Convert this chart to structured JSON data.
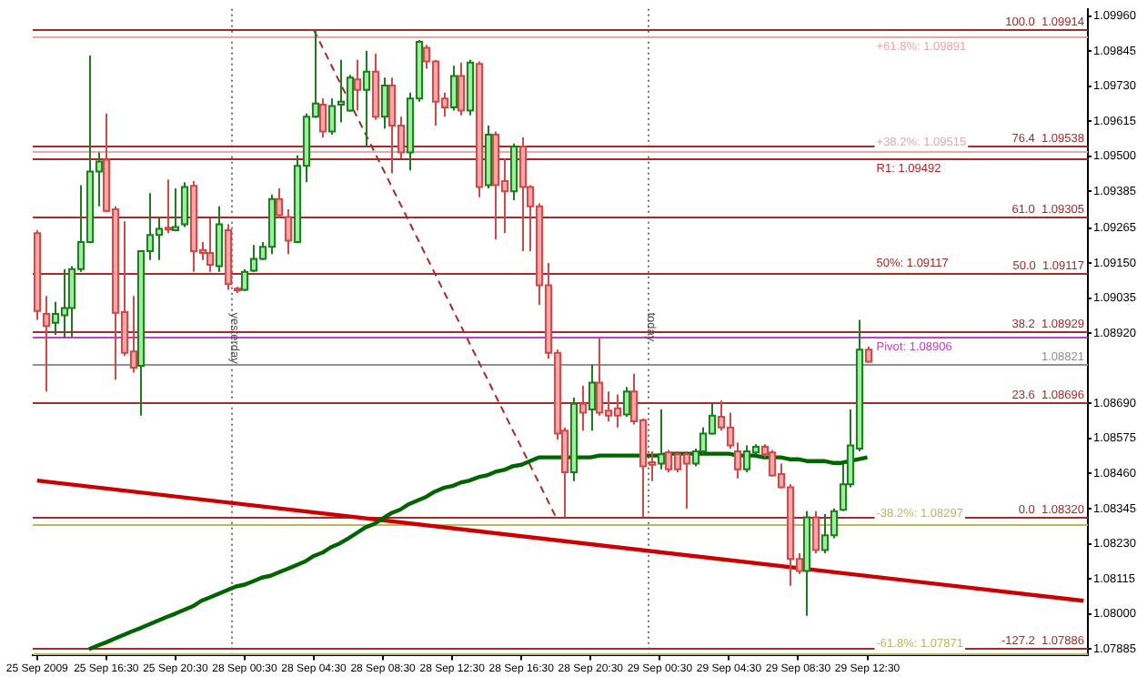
{
  "chart_data": {
    "type": "candlestick",
    "categories": [
      "25 Sep 2009",
      null,
      null,
      null,
      null,
      null,
      null,
      null,
      "25 Sep 16:30",
      null,
      null,
      null,
      null,
      null,
      null,
      null,
      "25 Sep 20:30",
      null,
      null,
      null,
      null,
      null,
      null,
      null,
      "28 Sep 00:30",
      null,
      null,
      null,
      null,
      null,
      null,
      null,
      "28 Sep 04:30",
      null,
      null,
      null,
      null,
      null,
      null,
      null,
      "28 Sep 08:30",
      null,
      null,
      null,
      null,
      null,
      null,
      null,
      "28 Sep 12:30",
      null,
      null,
      null,
      null,
      null,
      null,
      null,
      "28 Sep 16:30",
      null,
      null,
      null,
      null,
      null,
      null,
      null,
      "28 Sep 20:30",
      null,
      null,
      null,
      null,
      null,
      null,
      null,
      "29 Sep 00:30",
      null,
      null,
      null,
      null,
      null,
      null,
      null,
      "29 Sep 04:30",
      null,
      null,
      null,
      null,
      null,
      null,
      null,
      "29 Sep 08:30",
      null,
      null,
      null,
      null,
      null,
      null,
      null,
      "29 Sep 12:30",
      null,
      null,
      null,
      null,
      null,
      null,
      null,
      null,
      null,
      null,
      null,
      null,
      null,
      null,
      null,
      null,
      null,
      null,
      null,
      null,
      null,
      null,
      null,
      null,
      null
    ],
    "ohlc": [
      [
        1.09248,
        1.09258,
        1.08964,
        1.08993
      ],
      [
        1.08983,
        1.09042,
        1.08729,
        1.08944
      ],
      [
        1.08954,
        1.09023,
        1.08915,
        1.08983
      ],
      [
        1.08979,
        1.0913,
        1.08905,
        1.09003
      ],
      [
        1.09003,
        1.0914,
        1.08909,
        1.0913
      ],
      [
        1.0913,
        1.09405,
        1.09121,
        1.09219
      ],
      [
        1.09219,
        1.0983,
        1.09215,
        1.0945
      ],
      [
        1.0945,
        1.09513,
        1.09336,
        1.09483
      ],
      [
        1.09489,
        1.0964,
        1.09317,
        1.09321
      ],
      [
        1.09326,
        1.09336,
        1.08768,
        1.08987
      ],
      [
        1.08989,
        1.09287,
        1.08846,
        1.08856
      ],
      [
        1.0886,
        1.09042,
        1.08791,
        1.08807
      ],
      [
        1.08813,
        1.09189,
        1.0865,
        1.09189
      ],
      [
        1.09189,
        1.09379,
        1.0916,
        1.09242
      ],
      [
        1.09242,
        1.09297,
        1.0916,
        1.09262
      ],
      [
        1.09266,
        1.09424,
        1.09248,
        1.0926
      ],
      [
        1.09258,
        1.09395,
        1.09254,
        1.09268
      ],
      [
        1.09277,
        1.09415,
        1.09268,
        1.09399
      ],
      [
        1.09403,
        1.09419,
        1.09121,
        1.09189
      ],
      [
        1.09193,
        1.09219,
        1.0916,
        1.09183
      ],
      [
        1.09183,
        1.09297,
        1.09121,
        1.09144
      ],
      [
        1.0914,
        1.09336,
        1.09121,
        1.09277
      ],
      [
        1.09258,
        1.09277,
        1.09062,
        1.09081
      ],
      [
        1.09066,
        1.09072,
        1.09052,
        1.09062
      ],
      [
        1.09062,
        1.0913,
        1.09058,
        1.09121
      ],
      [
        1.09125,
        1.09209,
        1.09121,
        1.09164
      ],
      [
        1.09164,
        1.09219,
        1.0916,
        1.09203
      ],
      [
        1.09203,
        1.09375,
        1.09179,
        1.0936
      ],
      [
        1.0936,
        1.09395,
        1.09297,
        1.09307
      ],
      [
        1.09301,
        1.09326,
        1.09179,
        1.09223
      ],
      [
        1.09219,
        1.09503,
        1.09215,
        1.09469
      ],
      [
        1.09469,
        1.0964,
        1.09415,
        1.0963
      ],
      [
        1.0963,
        1.09914,
        1.09626,
        1.09673
      ],
      [
        1.09669,
        1.09689,
        1.09562,
        1.09581
      ],
      [
        1.09581,
        1.09689,
        1.09571,
        1.09665
      ],
      [
        1.09669,
        1.09816,
        1.09611,
        1.09679
      ],
      [
        1.0965,
        1.09767,
        1.09646,
        1.09758
      ],
      [
        1.09752,
        1.09816,
        1.0965,
        1.09718
      ],
      [
        1.09718,
        1.09846,
        1.09532,
        1.09777
      ],
      [
        1.09777,
        1.09836,
        1.0962,
        1.0963
      ],
      [
        1.0963,
        1.09758,
        1.09591,
        1.09732
      ],
      [
        1.09732,
        1.09758,
        1.09444,
        1.09601
      ],
      [
        1.09601,
        1.0963,
        1.09493,
        1.09513
      ],
      [
        1.09513,
        1.09709,
        1.09454,
        1.09689
      ],
      [
        1.09689,
        1.09881,
        1.09679,
        1.09875
      ],
      [
        1.09856,
        1.09865,
        1.09787,
        1.09811
      ],
      [
        1.09811,
        1.09816,
        1.09601,
        1.09679
      ],
      [
        1.09689,
        1.09709,
        1.0963,
        1.0966
      ],
      [
        1.0966,
        1.09797,
        1.0965,
        1.09763
      ],
      [
        1.09763,
        1.09807,
        1.09634,
        1.0965
      ],
      [
        1.0965,
        1.09816,
        1.09634,
        1.09807
      ],
      [
        1.09803,
        1.09811,
        1.09366,
        1.09399
      ],
      [
        1.09405,
        1.09601,
        1.09395,
        1.09571
      ],
      [
        1.09571,
        1.09581,
        1.09228,
        1.09405
      ],
      [
        1.09419,
        1.09493,
        1.09248,
        1.09385
      ],
      [
        1.09385,
        1.09542,
        1.09356,
        1.09532
      ],
      [
        1.09532,
        1.09562,
        1.09189,
        1.09399
      ],
      [
        1.09399,
        1.09405,
        1.09189,
        1.09336
      ],
      [
        1.09336,
        1.09346,
        1.09013,
        1.09077
      ],
      [
        1.09077,
        1.0915,
        1.08836,
        1.08856
      ],
      [
        1.08856,
        1.08866,
        1.08572,
        1.08591
      ],
      [
        1.08601,
        1.08611,
        1.08317,
        1.08464
      ],
      [
        1.08464,
        1.08709,
        1.08435,
        1.08689
      ],
      [
        1.08689,
        1.08748,
        1.08601,
        1.0866
      ],
      [
        1.0867,
        1.08817,
        1.08601,
        1.08758
      ],
      [
        1.08758,
        1.08905,
        1.0865,
        1.0866
      ],
      [
        1.08666,
        1.08729,
        1.08631,
        1.0865
      ],
      [
        1.08674,
        1.08719,
        1.08611,
        1.0865
      ],
      [
        1.08654,
        1.08744,
        1.08646,
        1.08729
      ],
      [
        1.08729,
        1.08787,
        1.08621,
        1.08631
      ],
      [
        1.08635,
        1.0864,
        1.08317,
        1.08484
      ],
      [
        1.08497,
        1.08533,
        1.08435,
        1.08489
      ],
      [
        1.08493,
        1.0867,
        1.08474,
        1.08523
      ],
      [
        1.08529,
        1.08537,
        1.08464,
        1.08474
      ],
      [
        1.08523,
        1.08533,
        1.08464,
        1.08474
      ],
      [
        1.08523,
        1.08533,
        1.08346,
        1.08493
      ],
      [
        1.08493,
        1.08542,
        1.08484,
        1.08533
      ],
      [
        1.08533,
        1.08611,
        1.08523,
        1.08591
      ],
      [
        1.08591,
        1.08689,
        1.08587,
        1.0865
      ],
      [
        1.08646,
        1.08699,
        1.08601,
        1.08611
      ],
      [
        1.08611,
        1.0866,
        1.08542,
        1.08552
      ],
      [
        1.08533,
        1.08562,
        1.08444,
        1.08474
      ],
      [
        1.08474,
        1.08552,
        1.08464,
        1.08533
      ],
      [
        1.08529,
        1.08556,
        1.08523,
        1.08548
      ],
      [
        1.08548,
        1.08556,
        1.08513,
        1.08523
      ],
      [
        1.08529,
        1.08537,
        1.0845,
        1.08454
      ],
      [
        1.08458,
        1.08493,
        1.08411,
        1.08415
      ],
      [
        1.08415,
        1.08425,
        1.08092,
        1.0818
      ],
      [
        1.0818,
        1.08199,
        1.08131,
        1.08141
      ],
      [
        1.08141,
        1.08337,
        1.07994,
        1.08317
      ],
      [
        1.08317,
        1.08337,
        1.08199,
        1.08209
      ],
      [
        1.08209,
        1.08327,
        1.08199,
        1.08258
      ],
      [
        1.08258,
        1.08346,
        1.08248,
        1.08337
      ],
      [
        1.08341,
        1.08493,
        1.08337,
        1.08425
      ],
      [
        1.08425,
        1.0867,
        1.08415,
        1.08552
      ],
      [
        1.08542,
        1.08964,
        1.08533,
        1.08866
      ],
      [
        1.08866,
        1.08876,
        1.08823,
        1.08827
      ],
      null,
      null,
      null,
      null,
      null,
      null,
      null,
      null,
      null,
      null,
      null,
      null,
      null,
      null,
      null,
      null,
      null,
      null,
      null,
      null,
      null,
      null,
      null,
      null,
      null
    ],
    "series": [
      {
        "type": "line",
        "color": "#006400",
        "values": [
          null,
          null,
          null,
          null,
          null,
          null,
          1.07884,
          1.07896,
          1.07907,
          1.07919,
          1.07931,
          1.07943,
          1.07954,
          1.07966,
          1.07978,
          1.0799,
          1.08001,
          1.08013,
          1.08025,
          1.08043,
          1.08054,
          1.08066,
          1.08078,
          1.0809,
          1.08096,
          1.08107,
          1.08119,
          1.08125,
          1.08137,
          1.08148,
          1.0816,
          1.08172,
          1.0819,
          1.08201,
          1.08219,
          1.08231,
          1.08248,
          1.08266,
          1.08284,
          1.08295,
          1.08313,
          1.08331,
          1.08342,
          1.0836,
          1.08372,
          1.08384,
          1.08401,
          1.08413,
          1.08419,
          1.08431,
          1.08437,
          1.08448,
          1.08454,
          1.08466,
          1.08472,
          1.08484,
          1.08489,
          1.08501,
          1.08513,
          1.08513,
          1.08513,
          1.08513,
          1.08513,
          1.08513,
          1.08513,
          1.08519,
          1.08519,
          1.08519,
          1.08519,
          1.08519,
          1.08519,
          1.08519,
          1.08519,
          1.08525,
          1.08525,
          1.08525,
          1.08525,
          1.08525,
          1.08525,
          1.08525,
          1.08525,
          1.08519,
          1.08519,
          1.08519,
          1.08513,
          1.08513,
          1.08513,
          1.08507,
          1.08507,
          1.08501,
          1.08501,
          1.08501,
          1.08495,
          1.08495,
          1.08501,
          1.08507,
          1.08513,
          null,
          null,
          null,
          null,
          null,
          null,
          null,
          null,
          null,
          null,
          null,
          null,
          null,
          null,
          null,
          null,
          null,
          null,
          null,
          null,
          null,
          null,
          null,
          null,
          null
        ]
      },
      {
        "type": "line",
        "color": "#cc0000",
        "values": [
          1.08437,
          null,
          null,
          null,
          null,
          null,
          null,
          null,
          null,
          null,
          null,
          null,
          null,
          null,
          null,
          null,
          null,
          null,
          null,
          null,
          null,
          null,
          null,
          null,
          null,
          null,
          null,
          null,
          null,
          null,
          null,
          null,
          null,
          null,
          null,
          null,
          null,
          null,
          null,
          null,
          null,
          null,
          null,
          null,
          null,
          null,
          null,
          null,
          null,
          null,
          null,
          null,
          null,
          null,
          null,
          null,
          null,
          null,
          null,
          null,
          null,
          null,
          null,
          null,
          null,
          null,
          null,
          null,
          null,
          null,
          null,
          null,
          null,
          null,
          null,
          null,
          null,
          null,
          null,
          null,
          null,
          null,
          null,
          null,
          null,
          null,
          null,
          null,
          null,
          null,
          null,
          null,
          null,
          null,
          null,
          null,
          null,
          null,
          null,
          null,
          null,
          null,
          null,
          null,
          null,
          null,
          null,
          null,
          null,
          null,
          null,
          null,
          null,
          null,
          null,
          null,
          null,
          null,
          null,
          null,
          null,
          1.08043
        ]
      },
      {
        "type": "line",
        "color": "#a52a2a",
        "line_style": "dashed",
        "values": [
          null,
          null,
          null,
          null,
          null,
          null,
          null,
          null,
          null,
          null,
          null,
          null,
          null,
          null,
          null,
          null,
          null,
          null,
          null,
          null,
          null,
          null,
          null,
          null,
          null,
          null,
          null,
          null,
          null,
          null,
          null,
          null,
          1.09914,
          null,
          null,
          null,
          null,
          null,
          null,
          null,
          null,
          null,
          null,
          null,
          null,
          null,
          null,
          null,
          null,
          null,
          null,
          null,
          null,
          null,
          null,
          null,
          null,
          null,
          null,
          null,
          1.08317,
          null,
          null,
          null,
          null,
          null,
          null,
          null,
          null,
          null,
          null,
          null,
          null,
          null,
          null,
          null,
          null,
          null,
          null,
          null,
          null,
          null,
          null,
          null,
          null,
          null,
          null,
          null,
          null,
          null,
          null,
          null,
          null,
          null,
          null,
          null,
          null,
          null,
          null,
          null,
          null,
          null,
          null,
          null,
          null,
          null,
          null,
          null,
          null,
          null,
          null,
          null,
          null,
          null,
          null,
          null,
          null,
          null,
          null,
          null,
          null,
          null
        ]
      }
    ],
    "ylim": [
      1.07866,
      1.09983
    ],
    "yticks": [
      {
        "value": 1.0996,
        "label": "1.09960"
      },
      {
        "value": 1.09845,
        "label": "1.09845"
      },
      {
        "value": 1.0973,
        "label": "1.09730"
      },
      {
        "value": 1.09615,
        "label": "1.09615"
      },
      {
        "value": 1.095,
        "label": "1.09500"
      },
      {
        "value": 1.09385,
        "label": "1.09385"
      },
      {
        "value": 1.09265,
        "label": "1.09265"
      },
      {
        "value": 1.0915,
        "label": "1.09150"
      },
      {
        "value": 1.09035,
        "label": "1.09035"
      },
      {
        "value": 1.0892,
        "label": "1.08920"
      },
      {
        "value": 1.0869,
        "label": "1.08690"
      },
      {
        "value": 1.08575,
        "label": "1.08575"
      },
      {
        "value": 1.0846,
        "label": "1.08460"
      },
      {
        "value": 1.08345,
        "label": "1.08345"
      },
      {
        "value": 1.0823,
        "label": "1.08230"
      },
      {
        "value": 1.08115,
        "label": "1.08115"
      },
      {
        "value": 1.08,
        "label": "1.08000"
      },
      {
        "value": 1.07885,
        "label": "1.07885"
      }
    ],
    "ref_lines": [
      {
        "axis": "y",
        "value": 1.09914,
        "label": "100.0  1.09914",
        "color": "#a52a2a"
      },
      {
        "axis": "y",
        "value": 1.09538,
        "label": "76.4  1.09538",
        "color": "#a52a2a"
      },
      {
        "axis": "y",
        "value": 1.09305,
        "label": "61.0  1.09305",
        "color": "#a52a2a"
      },
      {
        "axis": "y",
        "value": 1.09117,
        "label": "50.0  1.09117",
        "color": "#a52a2a"
      },
      {
        "axis": "y",
        "value": 1.08929,
        "label": "38.2  1.08929",
        "color": "#a52a2a"
      },
      {
        "axis": "y",
        "value": 1.08696,
        "label": "23.6  1.08696",
        "color": "#a52a2a"
      },
      {
        "axis": "y",
        "value": 1.0832,
        "label": "0.0  1.08320",
        "color": "#a52a2a"
      },
      {
        "axis": "y",
        "value": 1.07886,
        "label": "-127.2  1.07886",
        "color": "#a52a2a"
      },
      {
        "axis": "y",
        "value": 1.09891,
        "color": "#e8a8a8"
      },
      {
        "axis": "y",
        "value": 1.09515,
        "color": "#e8a8a8"
      },
      {
        "axis": "y",
        "value": 1.09492,
        "color": "#b22222"
      },
      {
        "axis": "y",
        "value": 1.08906,
        "color": "#c040c0"
      },
      {
        "axis": "y",
        "value": 1.08297,
        "color": "#b8b860"
      },
      {
        "axis": "y",
        "value": 1.07871,
        "color": "#b8b860"
      },
      {
        "axis": "y",
        "value": 1.08821,
        "label": "1.08821",
        "color": "#909090"
      }
    ],
    "annotations": [
      "yesterday",
      "today",
      {
        "text": "+38.2%: 1.09515",
        "y": 1.09515
      },
      {
        "text": "R1: 1.09492",
        "y": 1.09492
      },
      {
        "text": "50%: 1.09117",
        "y": 1.09117
      },
      {
        "text": "+61.8%: 1.09891",
        "y": 1.09891
      },
      {
        "text": "-61.8%: 1.07871",
        "y": 1.07871
      },
      {
        "text": "Pivot: 1.08906",
        "y": 1.08906
      },
      {
        "text": "-38.2%: 1.08297",
        "y": 1.08297
      }
    ]
  }
}
